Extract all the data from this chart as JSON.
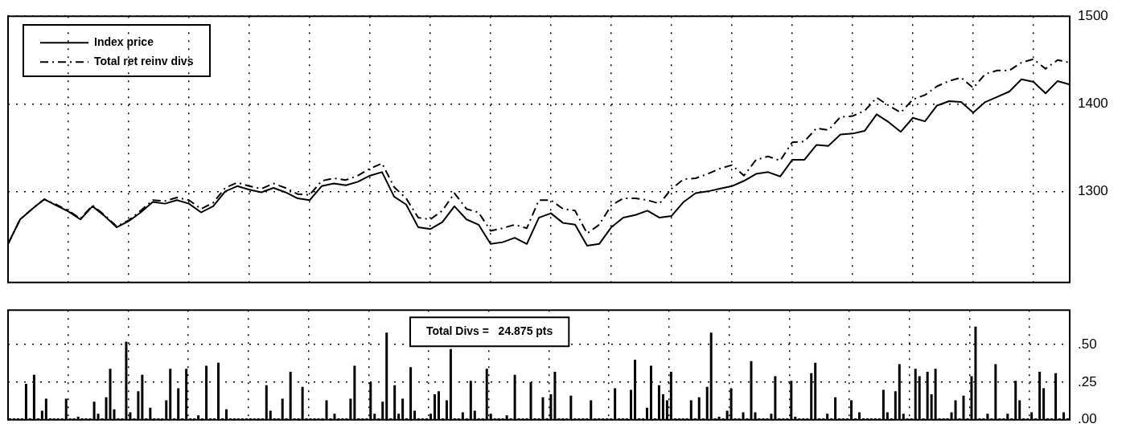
{
  "chart_data": [
    {
      "type": "line",
      "categories": [
        null,
        null,
        null,
        null,
        null,
        null,
        null,
        null,
        null,
        null,
        null,
        null,
        null,
        null,
        null,
        null,
        null,
        null,
        null,
        null,
        null,
        null,
        null,
        null,
        null,
        null,
        null,
        null,
        null,
        null,
        null,
        null,
        null,
        null,
        null,
        null,
        null,
        null,
        null,
        null,
        null,
        null,
        null,
        null,
        null,
        null,
        null,
        null,
        null,
        null,
        null,
        null,
        null,
        null,
        null,
        null,
        null,
        null,
        null,
        null,
        null,
        null,
        null,
        null,
        null,
        null,
        null,
        null,
        null,
        null,
        null,
        null,
        null,
        null,
        null,
        null,
        null,
        null,
        null,
        null,
        null,
        null,
        null,
        null,
        null,
        null,
        null,
        null,
        null
      ],
      "series": [
        {
          "name": "Index price",
          "color": "#000000",
          "line_style": "solid",
          "values": [
            1240,
            1268,
            1280,
            1291,
            1284,
            1277,
            1268,
            1283,
            1272,
            1259,
            1266,
            1276,
            1288,
            1286,
            1290,
            1286,
            1276,
            1283,
            1300,
            1306,
            1302,
            1299,
            1304,
            1299,
            1292,
            1290,
            1306,
            1309,
            1307,
            1311,
            1318,
            1322,
            1294,
            1285,
            1259,
            1257,
            1265,
            1283,
            1268,
            1262,
            1240,
            1242,
            1247,
            1240,
            1270,
            1275,
            1264,
            1262,
            1238,
            1240,
            1259,
            1270,
            1273,
            1278,
            1270,
            1272,
            1288,
            1298,
            1300,
            1303,
            1306,
            1312,
            1320,
            1322,
            1317,
            1336,
            1336,
            1353,
            1352,
            1365,
            1366,
            1369,
            1388,
            1379,
            1368,
            1384,
            1380,
            1398,
            1403,
            1402,
            1390,
            1402,
            1408,
            1414,
            1428,
            1425,
            1412,
            1426,
            1422
          ]
        },
        {
          "name": "Total ret reinv divs",
          "color": "#000000",
          "line_style": "dashed",
          "values": [
            1240,
            1268,
            1280,
            1291,
            1285,
            1278,
            1269,
            1284,
            1273,
            1260,
            1267,
            1278,
            1290,
            1289,
            1293,
            1290,
            1280,
            1287,
            1304,
            1310,
            1306,
            1303,
            1309,
            1304,
            1297,
            1296,
            1312,
            1315,
            1313,
            1318,
            1326,
            1332,
            1305,
            1292,
            1270,
            1268,
            1278,
            1298,
            1280,
            1276,
            1255,
            1258,
            1262,
            1258,
            1290,
            1290,
            1280,
            1278,
            1252,
            1262,
            1284,
            1292,
            1292,
            1290,
            1286,
            1303,
            1314,
            1315,
            1320,
            1326,
            1330,
            1318,
            1336,
            1340,
            1335,
            1356,
            1357,
            1372,
            1370,
            1385,
            1386,
            1392,
            1407,
            1398,
            1390,
            1405,
            1410,
            1420,
            1426,
            1430,
            1418,
            1434,
            1438,
            1438,
            1447,
            1451,
            1440,
            1450,
            1447
          ]
        }
      ],
      "ylim": [
        1196,
        1500
      ],
      "yticks": [
        1300,
        1400,
        1500
      ],
      "grid": true,
      "legend": "top left",
      "tick_labels": "y",
      "marker": "none"
    },
    {
      "type": "bar",
      "categories": [
        null,
        null,
        null,
        null,
        null,
        null,
        null,
        null,
        null,
        null,
        null,
        null,
        null,
        null,
        null,
        null,
        null,
        null,
        null,
        null,
        null,
        null,
        null,
        null,
        null,
        null,
        null,
        null,
        null,
        null,
        null,
        null,
        null,
        null,
        null,
        null,
        null,
        null,
        null,
        null,
        null,
        null,
        null,
        null,
        null,
        null,
        null,
        null,
        null,
        null,
        null,
        null,
        null,
        null,
        null,
        null,
        null,
        null,
        null,
        null,
        null,
        null,
        null,
        null,
        null,
        null,
        null,
        null,
        null,
        null,
        null,
        null,
        null,
        null,
        null,
        null,
        null,
        null,
        null,
        null,
        null,
        null,
        null,
        null,
        null,
        null,
        null,
        null,
        null,
        null,
        null,
        null,
        null,
        null,
        null,
        null,
        null,
        null,
        null,
        null,
        null,
        null,
        null,
        null,
        null,
        null,
        null,
        null,
        null,
        null,
        null,
        null,
        null,
        null,
        null,
        null,
        null,
        null,
        null,
        null,
        null,
        null,
        null,
        null,
        null,
        null,
        null,
        null,
        null,
        null,
        null,
        null,
        null,
        null,
        null,
        null,
        null,
        null,
        null,
        null,
        null,
        null,
        null,
        null,
        null,
        null,
        null,
        null,
        null,
        null,
        null,
        null,
        null,
        null,
        null,
        null,
        null,
        null,
        null,
        null,
        null,
        null,
        null,
        null,
        null,
        null,
        null,
        null,
        null,
        null,
        null,
        null,
        null,
        null,
        null,
        null,
        null,
        null,
        null,
        null,
        null,
        null,
        null,
        null,
        null,
        null,
        null,
        null,
        null,
        null,
        null,
        null,
        null,
        null,
        null,
        null,
        null,
        null,
        null,
        null,
        null,
        null,
        null,
        null,
        null,
        null,
        null,
        null,
        null,
        null,
        null,
        null,
        null,
        null,
        null,
        null,
        null,
        null,
        null,
        null,
        null,
        null,
        null,
        null,
        null,
        null,
        null,
        null,
        null,
        null,
        null,
        null,
        null,
        null,
        null,
        null,
        null,
        null,
        null,
        null,
        null,
        null,
        null,
        null,
        null,
        null,
        null,
        null,
        null,
        null,
        null,
        null,
        null,
        null,
        null,
        null,
        null,
        null,
        null,
        null,
        null,
        null,
        null,
        null,
        null
      ],
      "color": "#000000",
      "values": [
        0.01,
        0.01,
        0.01,
        0.01,
        0.24,
        0.01,
        0.3,
        0.01,
        0.06,
        0.14,
        0.01,
        0.01,
        0.01,
        0.01,
        0.14,
        0.01,
        0.01,
        0.02,
        0.01,
        0.01,
        0.01,
        0.12,
        0.04,
        0.01,
        0.15,
        0.34,
        0.07,
        0.01,
        0.01,
        0.52,
        0.05,
        0.01,
        0.19,
        0.3,
        0.01,
        0.08,
        0.01,
        0.01,
        0.01,
        0.13,
        0.34,
        0.01,
        0.21,
        0.01,
        0.34,
        0.01,
        0.01,
        0.03,
        0.01,
        0.36,
        0.01,
        0.01,
        0.38,
        0.01,
        0.07,
        0.01,
        0.01,
        0.01,
        0.01,
        0.01,
        0.01,
        0.01,
        0.01,
        0.01,
        0.23,
        0.06,
        0.01,
        0.01,
        0.14,
        0.01,
        0.32,
        0.01,
        0.01,
        0.22,
        0.01,
        0.01,
        0.01,
        0.01,
        0.01,
        0.13,
        0.01,
        0.04,
        0.01,
        0.01,
        0.01,
        0.14,
        0.36,
        0.01,
        0.01,
        0.01,
        0.25,
        0.04,
        0.01,
        0.12,
        0.58,
        0.01,
        0.23,
        0.04,
        0.14,
        0.01,
        0.35,
        0.06,
        0.01,
        0.01,
        0.01,
        0.04,
        0.17,
        0.19,
        0.01,
        0.13,
        0.47,
        0.01,
        0.01,
        0.05,
        0.01,
        0.26,
        0.06,
        0.01,
        0.01,
        0.34,
        0.04,
        0.01,
        0.01,
        0.01,
        0.03,
        0.01,
        0.3,
        0.01,
        0.01,
        0.01,
        0.25,
        0.01,
        0.01,
        0.15,
        0.01,
        0.17,
        0.32,
        0.01,
        0.01,
        0.01,
        0.16,
        0.01,
        0.01,
        0.01,
        0.01,
        0.13,
        0.01,
        0.01,
        0.01,
        0.01,
        0.01,
        0.21,
        0.01,
        0.01,
        0.01,
        0.2,
        0.4,
        0.01,
        0.01,
        0.08,
        0.36,
        0.01,
        0.23,
        0.17,
        0.13,
        0.32,
        0.01,
        0.01,
        0.01,
        0.01,
        0.13,
        0.01,
        0.15,
        0.01,
        0.22,
        0.58,
        0.01,
        0.02,
        0.01,
        0.06,
        0.21,
        0.01,
        0.01,
        0.05,
        0.01,
        0.39,
        0.05,
        0.01,
        0.01,
        0.01,
        0.04,
        0.29,
        0.01,
        0.01,
        0.01,
        0.26,
        0.02,
        0.01,
        0.01,
        0.01,
        0.31,
        0.38,
        0.01,
        0.01,
        0.04,
        0.01,
        0.15,
        0.01,
        0.01,
        0.01,
        0.13,
        0.01,
        0.05,
        0.01,
        0.01,
        0.01,
        0.01,
        0.01,
        0.2,
        0.05,
        0.01,
        0.19,
        0.37,
        0.04,
        0.01,
        0.01,
        0.34,
        0.29,
        0.01,
        0.32,
        0.17,
        0.34,
        0.01,
        0.01,
        0.01,
        0.05,
        0.13,
        0.01,
        0.16,
        0.01,
        0.29,
        0.62,
        0.01,
        0.01,
        0.04,
        0.01,
        0.37,
        0.01,
        0.01,
        0.04,
        0.01,
        0.26,
        0.13,
        0.01,
        0.01,
        0.05,
        0.01,
        0.32,
        0.21,
        0.01,
        0.01,
        0.31,
        0.01,
        0.05,
        0.01
      ],
      "ylim": [
        0,
        0.73
      ],
      "yticks": [
        {
          "value": 0,
          "label": ".00"
        },
        {
          "value": 0.25,
          "label": ".25"
        },
        {
          "value": 0.5,
          "label": ".50"
        }
      ],
      "grid": true,
      "tick_labels": "y",
      "annotations": [
        "Total Divs =   24.875 pts"
      ]
    }
  ]
}
